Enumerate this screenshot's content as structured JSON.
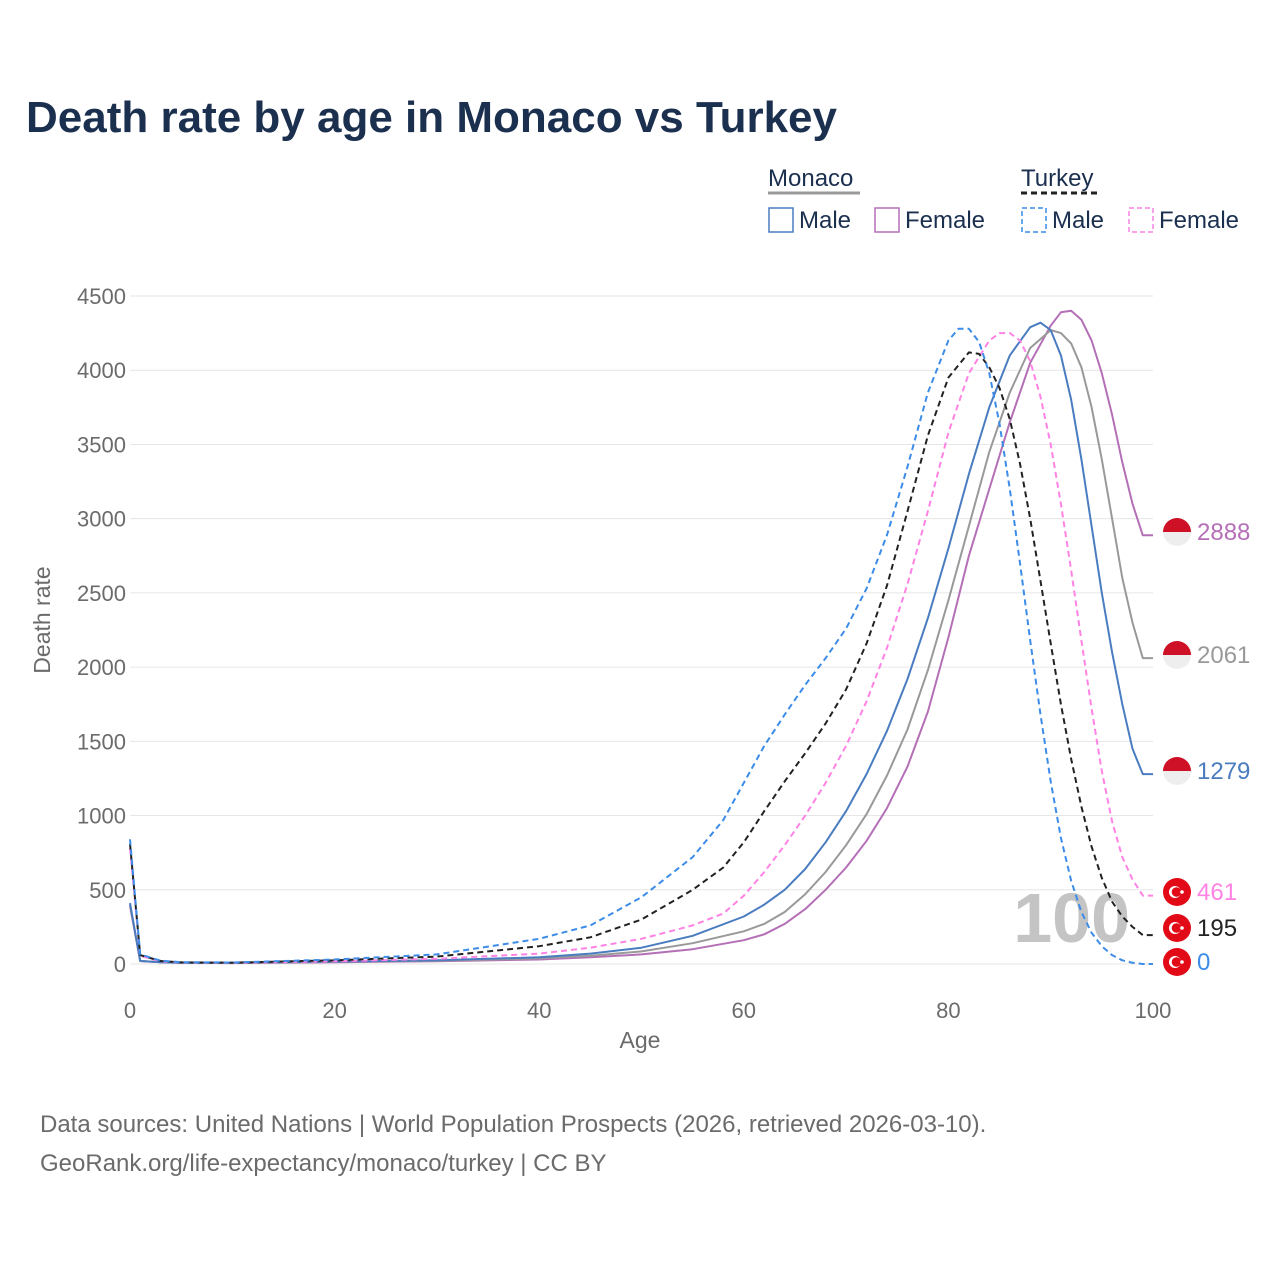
{
  "chart_data": {
    "type": "line",
    "title": "Death rate by age in Monaco vs Turkey",
    "xlabel": "Age",
    "ylabel": "Death rate",
    "xlim": [
      0,
      100
    ],
    "ylim": [
      0,
      4500
    ],
    "xticks": [
      0,
      20,
      40,
      60,
      80,
      100
    ],
    "yticks": [
      0,
      500,
      1000,
      1500,
      2000,
      2500,
      3000,
      3500,
      4000,
      4500
    ],
    "highlight_label": "100",
    "legend": {
      "groups": [
        {
          "name": "Monaco",
          "style": "solid",
          "color": "#999999",
          "items": [
            {
              "label": "Male",
              "color": "#4a7cc0"
            },
            {
              "label": "Female",
              "color": "#b46fb6"
            }
          ]
        },
        {
          "name": "Turkey",
          "style": "dashed",
          "color": "#222222",
          "items": [
            {
              "label": "Male",
              "color": "#3c8ce8"
            },
            {
              "label": "Female",
              "color": "#ff82e4"
            }
          ]
        }
      ]
    },
    "series": [
      {
        "name": "Monaco Female",
        "country": "Monaco",
        "color": "#b46fb6",
        "dash": false,
        "end_label": "2888",
        "points": [
          [
            0,
            390
          ],
          [
            1,
            20
          ],
          [
            3,
            12
          ],
          [
            5,
            8
          ],
          [
            10,
            6
          ],
          [
            20,
            12
          ],
          [
            30,
            18
          ],
          [
            40,
            30
          ],
          [
            45,
            45
          ],
          [
            50,
            65
          ],
          [
            55,
            100
          ],
          [
            60,
            160
          ],
          [
            62,
            200
          ],
          [
            64,
            270
          ],
          [
            66,
            370
          ],
          [
            68,
            500
          ],
          [
            70,
            650
          ],
          [
            72,
            830
          ],
          [
            74,
            1050
          ],
          [
            76,
            1330
          ],
          [
            78,
            1700
          ],
          [
            80,
            2200
          ],
          [
            82,
            2750
          ],
          [
            84,
            3200
          ],
          [
            86,
            3650
          ],
          [
            88,
            4050
          ],
          [
            90,
            4300
          ],
          [
            91,
            4390
          ],
          [
            92,
            4400
          ],
          [
            93,
            4340
          ],
          [
            94,
            4200
          ],
          [
            95,
            3980
          ],
          [
            96,
            3700
          ],
          [
            97,
            3380
          ],
          [
            98,
            3100
          ],
          [
            99,
            2888
          ],
          [
            100,
            2888
          ]
        ]
      },
      {
        "name": "Monaco Total",
        "country": "Monaco",
        "color": "#999999",
        "dash": false,
        "end_label": "2061",
        "points": [
          [
            0,
            400
          ],
          [
            1,
            20
          ],
          [
            3,
            12
          ],
          [
            5,
            8
          ],
          [
            10,
            7
          ],
          [
            20,
            14
          ],
          [
            30,
            22
          ],
          [
            40,
            38
          ],
          [
            45,
            55
          ],
          [
            50,
            85
          ],
          [
            55,
            140
          ],
          [
            60,
            220
          ],
          [
            62,
            270
          ],
          [
            64,
            350
          ],
          [
            66,
            470
          ],
          [
            68,
            620
          ],
          [
            70,
            800
          ],
          [
            72,
            1010
          ],
          [
            74,
            1270
          ],
          [
            76,
            1580
          ],
          [
            78,
            1980
          ],
          [
            80,
            2450
          ],
          [
            82,
            2950
          ],
          [
            84,
            3450
          ],
          [
            86,
            3850
          ],
          [
            88,
            4150
          ],
          [
            90,
            4270
          ],
          [
            91,
            4250
          ],
          [
            92,
            4180
          ],
          [
            93,
            4020
          ],
          [
            94,
            3750
          ],
          [
            95,
            3400
          ],
          [
            96,
            3000
          ],
          [
            97,
            2600
          ],
          [
            98,
            2300
          ],
          [
            99,
            2061
          ],
          [
            100,
            2061
          ]
        ]
      },
      {
        "name": "Monaco Male",
        "country": "Monaco",
        "color": "#4a7cc0",
        "dash": false,
        "end_label": "1279",
        "points": [
          [
            0,
            410
          ],
          [
            1,
            20
          ],
          [
            3,
            12
          ],
          [
            5,
            9
          ],
          [
            10,
            8
          ],
          [
            20,
            16
          ],
          [
            30,
            25
          ],
          [
            40,
            45
          ],
          [
            45,
            70
          ],
          [
            50,
            110
          ],
          [
            55,
            190
          ],
          [
            60,
            320
          ],
          [
            62,
            400
          ],
          [
            64,
            500
          ],
          [
            66,
            640
          ],
          [
            68,
            820
          ],
          [
            70,
            1030
          ],
          [
            72,
            1280
          ],
          [
            74,
            1570
          ],
          [
            76,
            1920
          ],
          [
            78,
            2330
          ],
          [
            80,
            2800
          ],
          [
            82,
            3300
          ],
          [
            84,
            3750
          ],
          [
            86,
            4100
          ],
          [
            88,
            4290
          ],
          [
            89,
            4320
          ],
          [
            90,
            4270
          ],
          [
            91,
            4100
          ],
          [
            92,
            3800
          ],
          [
            93,
            3400
          ],
          [
            94,
            2950
          ],
          [
            95,
            2500
          ],
          [
            96,
            2100
          ],
          [
            97,
            1750
          ],
          [
            98,
            1450
          ],
          [
            99,
            1279
          ],
          [
            100,
            1279
          ]
        ]
      },
      {
        "name": "Turkey Female",
        "country": "Turkey",
        "color": "#ff82e4",
        "dash": true,
        "end_label": "461",
        "points": [
          [
            0,
            780
          ],
          [
            1,
            55
          ],
          [
            3,
            18
          ],
          [
            5,
            10
          ],
          [
            10,
            8
          ],
          [
            20,
            18
          ],
          [
            30,
            35
          ],
          [
            40,
            70
          ],
          [
            45,
            110
          ],
          [
            50,
            170
          ],
          [
            55,
            260
          ],
          [
            58,
            340
          ],
          [
            60,
            460
          ],
          [
            62,
            620
          ],
          [
            64,
            800
          ],
          [
            66,
            1000
          ],
          [
            68,
            1220
          ],
          [
            70,
            1470
          ],
          [
            72,
            1770
          ],
          [
            74,
            2130
          ],
          [
            76,
            2560
          ],
          [
            78,
            3050
          ],
          [
            80,
            3580
          ],
          [
            82,
            3980
          ],
          [
            84,
            4200
          ],
          [
            85,
            4250
          ],
          [
            86,
            4250
          ],
          [
            87,
            4200
          ],
          [
            88,
            4060
          ],
          [
            89,
            3820
          ],
          [
            90,
            3500
          ],
          [
            91,
            3100
          ],
          [
            92,
            2650
          ],
          [
            93,
            2180
          ],
          [
            94,
            1720
          ],
          [
            95,
            1300
          ],
          [
            96,
            960
          ],
          [
            97,
            720
          ],
          [
            98,
            570
          ],
          [
            99,
            461
          ],
          [
            100,
            461
          ]
        ]
      },
      {
        "name": "Turkey Total",
        "country": "Turkey",
        "color": "#222222",
        "dash": true,
        "end_label": "195",
        "points": [
          [
            0,
            810
          ],
          [
            1,
            60
          ],
          [
            3,
            20
          ],
          [
            5,
            11
          ],
          [
            10,
            9
          ],
          [
            20,
            25
          ],
          [
            30,
            50
          ],
          [
            40,
            120
          ],
          [
            45,
            180
          ],
          [
            50,
            300
          ],
          [
            55,
            500
          ],
          [
            58,
            650
          ],
          [
            60,
            820
          ],
          [
            62,
            1030
          ],
          [
            64,
            1230
          ],
          [
            66,
            1420
          ],
          [
            68,
            1620
          ],
          [
            70,
            1850
          ],
          [
            72,
            2160
          ],
          [
            74,
            2550
          ],
          [
            76,
            3050
          ],
          [
            78,
            3560
          ],
          [
            80,
            3950
          ],
          [
            82,
            4120
          ],
          [
            83,
            4110
          ],
          [
            84,
            4020
          ],
          [
            85,
            3880
          ],
          [
            86,
            3670
          ],
          [
            87,
            3370
          ],
          [
            88,
            3000
          ],
          [
            89,
            2580
          ],
          [
            90,
            2160
          ],
          [
            91,
            1750
          ],
          [
            92,
            1380
          ],
          [
            93,
            1060
          ],
          [
            94,
            790
          ],
          [
            95,
            580
          ],
          [
            96,
            420
          ],
          [
            97,
            320
          ],
          [
            98,
            250
          ],
          [
            99,
            195
          ],
          [
            100,
            195
          ]
        ]
      },
      {
        "name": "Turkey Male",
        "country": "Turkey",
        "color": "#3c8ce8",
        "dash": true,
        "end_label": "0",
        "points": [
          [
            0,
            840
          ],
          [
            1,
            65
          ],
          [
            3,
            22
          ],
          [
            5,
            12
          ],
          [
            10,
            10
          ],
          [
            20,
            30
          ],
          [
            30,
            65
          ],
          [
            40,
            170
          ],
          [
            45,
            260
          ],
          [
            50,
            450
          ],
          [
            55,
            720
          ],
          [
            58,
            970
          ],
          [
            60,
            1220
          ],
          [
            62,
            1470
          ],
          [
            64,
            1680
          ],
          [
            66,
            1880
          ],
          [
            68,
            2060
          ],
          [
            70,
            2260
          ],
          [
            72,
            2530
          ],
          [
            74,
            2890
          ],
          [
            76,
            3350
          ],
          [
            78,
            3850
          ],
          [
            80,
            4200
          ],
          [
            81,
            4280
          ],
          [
            82,
            4280
          ],
          [
            83,
            4190
          ],
          [
            84,
            3980
          ],
          [
            85,
            3640
          ],
          [
            86,
            3200
          ],
          [
            87,
            2700
          ],
          [
            88,
            2180
          ],
          [
            89,
            1680
          ],
          [
            90,
            1230
          ],
          [
            91,
            850
          ],
          [
            92,
            560
          ],
          [
            93,
            350
          ],
          [
            94,
            210
          ],
          [
            95,
            120
          ],
          [
            96,
            60
          ],
          [
            97,
            25
          ],
          [
            98,
            8
          ],
          [
            99,
            0
          ],
          [
            100,
            0
          ]
        ]
      }
    ]
  },
  "source": {
    "line1": "Data sources: United Nations | World Population Prospects (2026, retrieved 2026-03-10).",
    "line2": "GeoRank.org/life-expectancy/monaco/turkey | CC BY"
  }
}
